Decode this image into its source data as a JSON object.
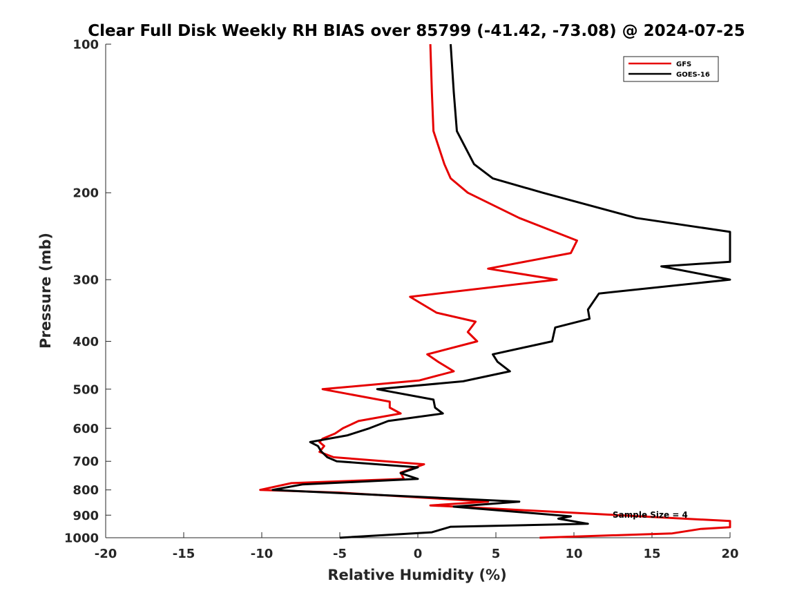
{
  "chart_data": {
    "type": "line",
    "title": "Clear Full Disk Weekly RH BIAS over 85799 (-41.42, -73.08) @ 2024-07-25",
    "xlabel": "Relative Humidity (%)",
    "ylabel": "Pressure (mb)",
    "xlim": [
      -20,
      20
    ],
    "ylim": [
      100,
      1000
    ],
    "y_scale": "log",
    "y_reversed": true,
    "grid": false,
    "legend_position": "top-right",
    "x_ticks": [
      -20,
      -15,
      -10,
      -5,
      0,
      5,
      10,
      15,
      20
    ],
    "y_ticks": [
      100,
      200,
      300,
      400,
      500,
      600,
      700,
      800,
      900,
      1000
    ],
    "annotation": "Sample Size = 4",
    "series": [
      {
        "name": "GFS",
        "color": "#e60000",
        "points": [
          [
            0.8,
            100
          ],
          [
            0.9,
            125
          ],
          [
            1.0,
            150
          ],
          [
            1.7,
            175
          ],
          [
            2.1,
            187
          ],
          [
            3.2,
            200
          ],
          [
            6.5,
            225
          ],
          [
            10.2,
            250
          ],
          [
            9.8,
            265
          ],
          [
            4.5,
            285
          ],
          [
            8.9,
            300
          ],
          [
            -0.5,
            325
          ],
          [
            1.2,
            350
          ],
          [
            3.7,
            365
          ],
          [
            3.2,
            383
          ],
          [
            3.8,
            400
          ],
          [
            0.6,
            425
          ],
          [
            1.3,
            440
          ],
          [
            2.3,
            460
          ],
          [
            0.1,
            480
          ],
          [
            -6.1,
            500
          ],
          [
            -1.8,
            530
          ],
          [
            -1.8,
            545
          ],
          [
            -1.1,
            560
          ],
          [
            -3.8,
            580
          ],
          [
            -4.8,
            600
          ],
          [
            -5.3,
            615
          ],
          [
            -6.1,
            630
          ],
          [
            -6.3,
            640
          ],
          [
            -6.0,
            652
          ],
          [
            -6.3,
            670
          ],
          [
            -5.4,
            687
          ],
          [
            0.4,
            710
          ],
          [
            -1.1,
            738
          ],
          [
            -0.9,
            760
          ],
          [
            -8.1,
            775
          ],
          [
            -10.1,
            800
          ],
          [
            -5.0,
            810
          ],
          [
            4.5,
            845
          ],
          [
            0.8,
            860
          ],
          [
            4.0,
            870
          ],
          [
            20.0,
            925
          ],
          [
            20.0,
            952
          ],
          [
            18.1,
            960
          ],
          [
            16.3,
            980
          ],
          [
            7.8,
            1000
          ]
        ]
      },
      {
        "name": "GOES-16",
        "color": "#000000",
        "points": [
          [
            2.1,
            100
          ],
          [
            2.3,
            125
          ],
          [
            2.5,
            150
          ],
          [
            3.6,
            175
          ],
          [
            4.8,
            187
          ],
          [
            8.0,
            200
          ],
          [
            14.0,
            225
          ],
          [
            20.0,
            240
          ],
          [
            20.0,
            276
          ],
          [
            15.6,
            282
          ],
          [
            20.0,
            300
          ],
          [
            11.6,
            320
          ],
          [
            10.9,
            345
          ],
          [
            11.0,
            360
          ],
          [
            8.8,
            375
          ],
          [
            8.6,
            400
          ],
          [
            4.8,
            425
          ],
          [
            5.1,
            440
          ],
          [
            5.9,
            460
          ],
          [
            2.9,
            482
          ],
          [
            -2.6,
            500
          ],
          [
            1.0,
            525
          ],
          [
            1.1,
            545
          ],
          [
            1.6,
            560
          ],
          [
            -1.9,
            580
          ],
          [
            -3.1,
            600
          ],
          [
            -4.5,
            620
          ],
          [
            -6.9,
            640
          ],
          [
            -6.4,
            652
          ],
          [
            -6.2,
            668
          ],
          [
            -5.8,
            687
          ],
          [
            -5.2,
            700
          ],
          [
            0.0,
            720
          ],
          [
            -1.1,
            740
          ],
          [
            0.0,
            760
          ],
          [
            -7.4,
            780
          ],
          [
            -9.3,
            800
          ],
          [
            6.5,
            845
          ],
          [
            2.3,
            865
          ],
          [
            9.8,
            905
          ],
          [
            9.0,
            915
          ],
          [
            10.9,
            937
          ],
          [
            2.1,
            950
          ],
          [
            0.9,
            975
          ],
          [
            -5.0,
            1000
          ]
        ]
      }
    ]
  }
}
